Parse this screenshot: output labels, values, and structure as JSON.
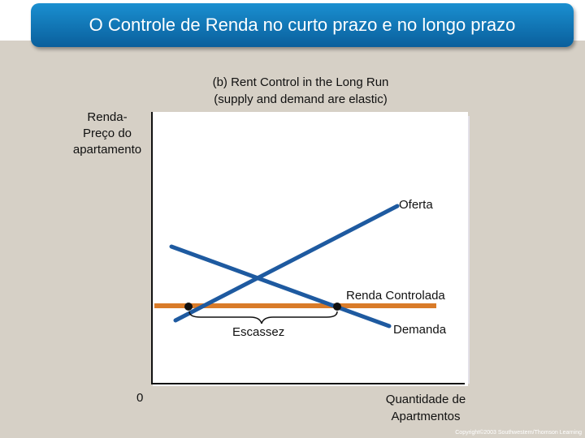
{
  "slide": {
    "title": "O Controle de Renda no curto prazo e no longo prazo",
    "copyright": "Copyright©2003 Southwestern/Thomson Learning"
  },
  "chart_data": {
    "type": "line",
    "title_line1": "(b) Rent Control in the Long Run",
    "title_line2": "(supply and demand are elastic)",
    "ylabel_line1": "Renda-",
    "ylabel_line2": "Preço do",
    "ylabel_line3": "apartamento",
    "xlabel_line1": "Quantidade de",
    "xlabel_line2": "Apartmentos",
    "origin_label": "0",
    "curves": {
      "supply": {
        "label": "Oferta",
        "color": "#1e5aa0"
      },
      "demand": {
        "label": "Demanda",
        "color": "#1e5aa0"
      },
      "rent_control": {
        "label": "Renda Controlada",
        "color": "#d97b29"
      }
    },
    "shortage_label": "Escassez",
    "grid": false
  }
}
